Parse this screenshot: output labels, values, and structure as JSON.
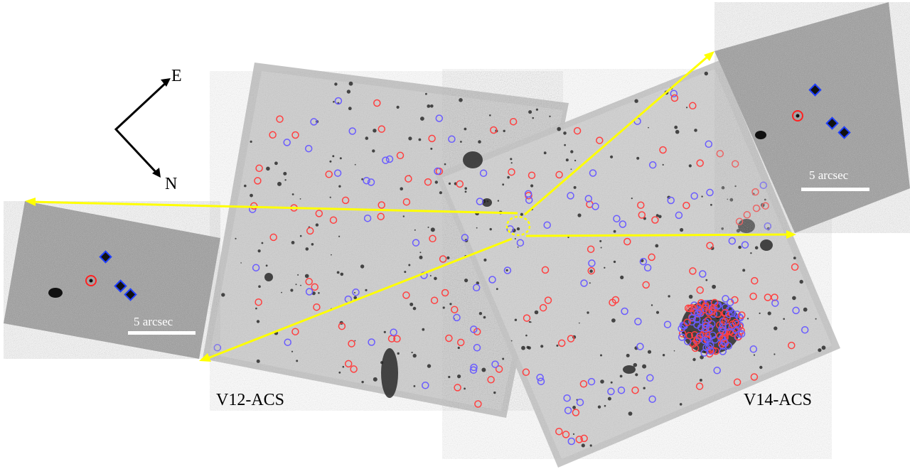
{
  "figure": {
    "fields": [
      {
        "label": "V12-ACS"
      },
      {
        "label": "V14-ACS"
      }
    ],
    "compass": {
      "east": "E",
      "north": "N"
    },
    "insets": [
      {
        "scale_label": "5 arcsec"
      },
      {
        "scale_label": "5 arcsec"
      }
    ],
    "colors": {
      "zoom_lines": "#ffff00",
      "marker_red": "#ff4040",
      "marker_blue": "#6a5cff",
      "background_panel": "#c8c8c8"
    },
    "icons": [
      "compass-arrows-icon"
    ]
  }
}
